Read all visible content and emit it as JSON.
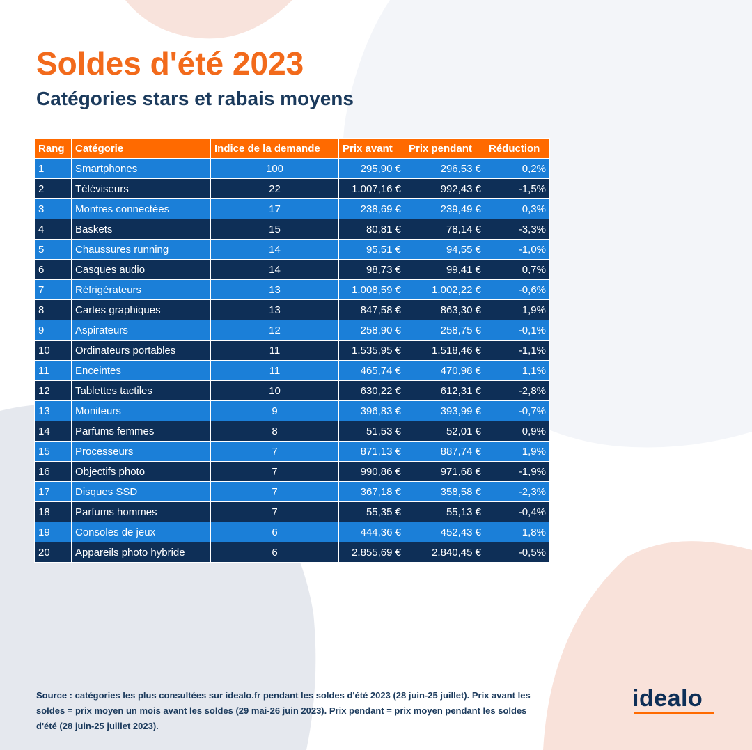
{
  "header": {
    "title": "Soldes d'été 2023",
    "subtitle": "Catégories stars et rabais moyens"
  },
  "table": {
    "columns": [
      "Rang",
      "Catégorie",
      "Indice de la demande",
      "Prix avant",
      "Prix pendant",
      "Réduction"
    ],
    "rows": [
      [
        "1",
        "Smartphones",
        "100",
        "295,90 €",
        "296,53 €",
        "0,2%"
      ],
      [
        "2",
        "Téléviseurs",
        "22",
        "1.007,16 €",
        "992,43 €",
        "-1,5%"
      ],
      [
        "3",
        "Montres connectées",
        "17",
        "238,69 €",
        "239,49 €",
        "0,3%"
      ],
      [
        "4",
        "Baskets",
        "15",
        "80,81 €",
        "78,14 €",
        "-3,3%"
      ],
      [
        "5",
        "Chaussures running",
        "14",
        "95,51 €",
        "94,55 €",
        "-1,0%"
      ],
      [
        "6",
        "Casques audio",
        "14",
        "98,73 €",
        "99,41 €",
        "0,7%"
      ],
      [
        "7",
        "Réfrigérateurs",
        "13",
        "1.008,59 €",
        "1.002,22 €",
        "-0,6%"
      ],
      [
        "8",
        "Cartes graphiques",
        "13",
        "847,58 €",
        "863,30 €",
        "1,9%"
      ],
      [
        "9",
        "Aspirateurs",
        "12",
        "258,90 €",
        "258,75 €",
        "-0,1%"
      ],
      [
        "10",
        "Ordinateurs portables",
        "11",
        "1.535,95 €",
        "1.518,46 €",
        "-1,1%"
      ],
      [
        "11",
        "Enceintes",
        "11",
        "465,74 €",
        "470,98 €",
        "1,1%"
      ],
      [
        "12",
        "Tablettes tactiles",
        "10",
        "630,22 €",
        "612,31 €",
        "-2,8%"
      ],
      [
        "13",
        "Moniteurs",
        "9",
        "396,83 €",
        "393,99 €",
        "-0,7%"
      ],
      [
        "14",
        "Parfums femmes",
        "8",
        "51,53 €",
        "52,01 €",
        "0,9%"
      ],
      [
        "15",
        "Processeurs",
        "7",
        "871,13 €",
        "887,74 €",
        "1,9%"
      ],
      [
        "16",
        "Objectifs photo",
        "7",
        "990,86 €",
        "971,68 €",
        "-1,9%"
      ],
      [
        "17",
        "Disques SSD",
        "7",
        "367,18 €",
        "358,58 €",
        "-2,3%"
      ],
      [
        "18",
        "Parfums hommes",
        "7",
        "55,35 €",
        "55,13 €",
        "-0,4%"
      ],
      [
        "19",
        "Consoles de jeux",
        "6",
        "444,36 €",
        "452,43 €",
        "1,8%"
      ],
      [
        "20",
        "Appareils photo hybride",
        "6",
        "2.855,69 €",
        "2.840,45 €",
        "-0,5%"
      ]
    ]
  },
  "source": {
    "label": "Source :",
    "text": "catégories les plus consultées sur idealo.fr pendant les soldes d'été 2023 (28 juin-25 juillet). Prix avant les soldes = prix moyen un mois avant les soldes (29 mai-26 juin 2023). Prix pendant = prix moyen pendant les soldes d'été (28 juin-25 juillet 2023)."
  },
  "logo": "idealo"
}
